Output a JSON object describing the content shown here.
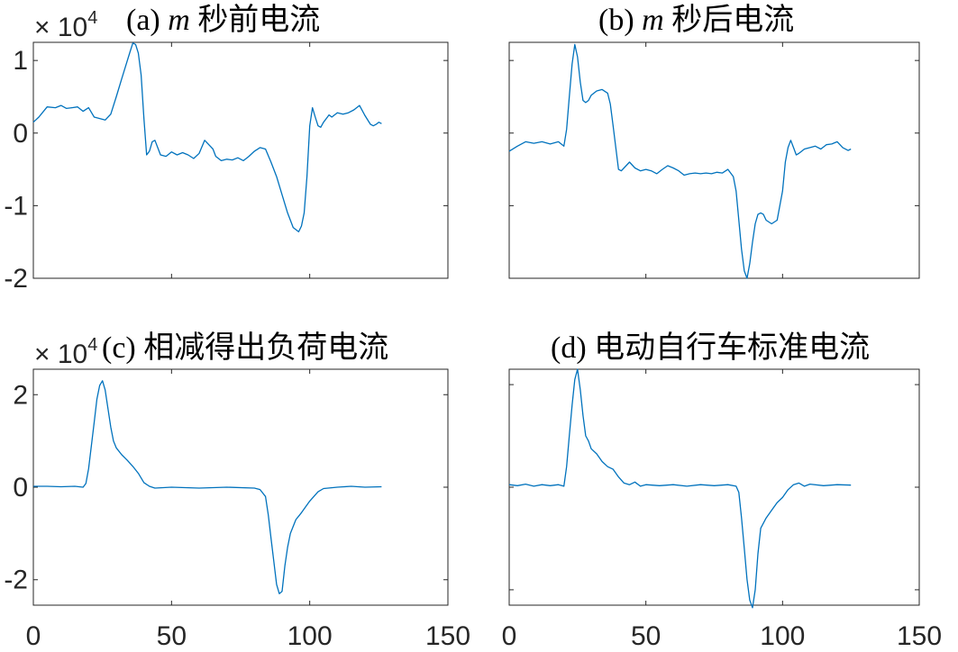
{
  "chart_data": [
    {
      "type": "line",
      "title_prefix": "(a)",
      "title_var": "m",
      "title_text": "秒前电流",
      "y_exponent_label": "× 10",
      "y_exponent_power": "4",
      "xlim": [
        0,
        150
      ],
      "ylim": [
        -2,
        1.25
      ],
      "y_ticks": [
        1,
        0,
        -1,
        -2
      ],
      "y_tick_labels": [
        "1",
        "0",
        "-1",
        "-2"
      ],
      "x_ticks": [
        0,
        50,
        100,
        150
      ],
      "x_tick_labels": [],
      "grid": false,
      "series": [
        {
          "color": "#0072BD",
          "x": [
            0,
            2,
            5,
            8,
            10,
            12,
            14,
            16,
            18,
            20,
            22,
            24,
            26,
            28,
            30,
            32,
            34,
            35,
            36,
            37,
            38,
            39,
            40,
            41,
            42,
            43,
            44,
            45,
            46,
            48,
            50,
            52,
            54,
            56,
            58,
            60,
            62,
            64,
            65,
            66,
            68,
            70,
            72,
            74,
            76,
            78,
            80,
            82,
            84,
            86,
            88,
            90,
            92,
            94,
            96,
            97,
            98,
            99,
            100,
            101,
            102,
            103,
            104,
            105,
            106,
            107,
            108,
            110,
            112,
            114,
            116,
            118,
            120,
            122,
            123,
            124,
            125,
            126
          ],
          "y": [
            0.15,
            0.22,
            0.36,
            0.35,
            0.38,
            0.34,
            0.35,
            0.36,
            0.3,
            0.35,
            0.22,
            0.2,
            0.18,
            0.26,
            0.5,
            0.75,
            1.0,
            1.12,
            1.24,
            1.22,
            1.1,
            0.8,
            0.2,
            -0.3,
            -0.25,
            -0.12,
            -0.1,
            -0.2,
            -0.3,
            -0.32,
            -0.26,
            -0.3,
            -0.27,
            -0.3,
            -0.35,
            -0.28,
            -0.1,
            -0.18,
            -0.22,
            -0.32,
            -0.38,
            -0.36,
            -0.37,
            -0.34,
            -0.38,
            -0.32,
            -0.25,
            -0.2,
            -0.22,
            -0.4,
            -0.6,
            -0.85,
            -1.1,
            -1.3,
            -1.36,
            -1.28,
            -1.1,
            -0.6,
            0.1,
            0.35,
            0.22,
            0.1,
            0.08,
            0.15,
            0.2,
            0.25,
            0.22,
            0.28,
            0.26,
            0.28,
            0.32,
            0.38,
            0.24,
            0.12,
            0.1,
            0.12,
            0.15,
            0.13
          ]
        }
      ]
    },
    {
      "type": "line",
      "title_prefix": "(b)",
      "title_var": "m",
      "title_text": "秒后电流",
      "y_exponent_label": "",
      "y_exponent_power": "",
      "xlim": [
        0,
        150
      ],
      "ylim": [
        -2,
        1.25
      ],
      "y_ticks": [
        1,
        0,
        -1,
        -2
      ],
      "y_tick_labels": [],
      "x_ticks": [
        0,
        50,
        100,
        150
      ],
      "x_tick_labels": [],
      "grid": false,
      "series": [
        {
          "color": "#0072BD",
          "x": [
            0,
            3,
            6,
            9,
            12,
            15,
            18,
            20,
            21,
            22,
            23,
            24,
            25,
            26,
            27,
            28,
            29,
            30,
            32,
            34,
            36,
            37,
            38,
            39,
            40,
            41,
            42,
            44,
            46,
            48,
            50,
            52,
            54,
            56,
            58,
            60,
            62,
            64,
            66,
            68,
            70,
            72,
            74,
            76,
            78,
            80,
            82,
            83,
            84,
            85,
            86,
            87,
            88,
            89,
            90,
            91,
            92,
            93,
            94,
            96,
            98,
            100,
            101,
            102,
            103,
            104,
            105,
            106,
            108,
            110,
            112,
            114,
            116,
            118,
            120,
            122,
            124,
            125
          ],
          "y": [
            -0.25,
            -0.18,
            -0.12,
            -0.14,
            -0.12,
            -0.15,
            -0.12,
            -0.18,
            0.05,
            0.5,
            0.95,
            1.22,
            1.05,
            0.7,
            0.45,
            0.42,
            0.45,
            0.52,
            0.58,
            0.6,
            0.55,
            0.4,
            0.1,
            -0.2,
            -0.5,
            -0.52,
            -0.48,
            -0.4,
            -0.48,
            -0.52,
            -0.5,
            -0.52,
            -0.56,
            -0.5,
            -0.45,
            -0.48,
            -0.52,
            -0.58,
            -0.56,
            -0.55,
            -0.56,
            -0.55,
            -0.56,
            -0.54,
            -0.55,
            -0.5,
            -0.6,
            -0.8,
            -1.2,
            -1.6,
            -1.9,
            -2.0,
            -1.8,
            -1.5,
            -1.25,
            -1.12,
            -1.1,
            -1.12,
            -1.2,
            -1.25,
            -1.2,
            -0.8,
            -0.4,
            -0.2,
            -0.1,
            -0.2,
            -0.3,
            -0.28,
            -0.22,
            -0.2,
            -0.18,
            -0.22,
            -0.16,
            -0.15,
            -0.12,
            -0.2,
            -0.24,
            -0.22
          ]
        }
      ]
    },
    {
      "type": "line",
      "title_prefix": "(c)",
      "title_var": "",
      "title_text": "相减得出负荷电流",
      "y_exponent_label": "× 10",
      "y_exponent_power": "4",
      "xlim": [
        0,
        150
      ],
      "ylim": [
        -2.55,
        2.55
      ],
      "y_ticks": [
        2,
        0,
        -2
      ],
      "y_tick_labels": [
        "2",
        "0",
        "-2"
      ],
      "x_ticks": [
        0,
        50,
        100,
        150
      ],
      "x_tick_labels": [
        "0",
        "50",
        "100",
        "150"
      ],
      "grid": false,
      "series": [
        {
          "color": "#0072BD",
          "x": [
            0,
            5,
            10,
            15,
            18,
            19,
            20,
            21,
            22,
            23,
            24,
            25,
            26,
            27,
            28,
            29,
            30,
            32,
            34,
            36,
            38,
            40,
            42,
            44,
            50,
            60,
            70,
            80,
            82,
            84,
            85,
            86,
            87,
            88,
            89,
            90,
            91,
            92,
            93,
            95,
            97,
            100,
            103,
            105,
            110,
            115,
            120,
            126
          ],
          "y": [
            0.02,
            0.02,
            0.01,
            0.02,
            0.0,
            0.08,
            0.4,
            0.9,
            1.4,
            1.9,
            2.2,
            2.3,
            2.1,
            1.7,
            1.3,
            1.0,
            0.85,
            0.7,
            0.58,
            0.45,
            0.3,
            0.1,
            0.02,
            -0.02,
            0.0,
            -0.02,
            0.0,
            -0.02,
            -0.05,
            -0.2,
            -0.6,
            -1.1,
            -1.6,
            -2.1,
            -2.3,
            -2.25,
            -1.7,
            -1.3,
            -1.0,
            -0.7,
            -0.55,
            -0.3,
            -0.1,
            -0.03,
            0.0,
            0.02,
            0.0,
            0.01
          ]
        }
      ]
    },
    {
      "type": "line",
      "title_prefix": "(d)",
      "title_var": "",
      "title_text": "电动自行车标准电流",
      "y_exponent_label": "",
      "y_exponent_power": "",
      "xlim": [
        0,
        150
      ],
      "ylim": [
        -2.3,
        2.3
      ],
      "y_ticks": [
        2,
        0,
        -2
      ],
      "y_tick_labels": [],
      "x_ticks": [
        0,
        50,
        100,
        150
      ],
      "x_tick_labels": [
        "0",
        "50",
        "100",
        "150"
      ],
      "grid": false,
      "series": [
        {
          "color": "#0072BD",
          "x": [
            0,
            3,
            6,
            9,
            12,
            15,
            18,
            20,
            21,
            22,
            23,
            24,
            25,
            26,
            27,
            28,
            29,
            30,
            32,
            34,
            36,
            38,
            40,
            42,
            44,
            46,
            48,
            50,
            55,
            60,
            65,
            70,
            75,
            80,
            83,
            84,
            85,
            86,
            87,
            88,
            89,
            90,
            91,
            92,
            94,
            96,
            98,
            100,
            102,
            104,
            106,
            108,
            110,
            115,
            120,
            125
          ],
          "y": [
            0.05,
            0.03,
            0.06,
            0.02,
            0.05,
            0.03,
            0.05,
            0.02,
            0.4,
            1.0,
            1.6,
            2.1,
            2.3,
            1.9,
            1.4,
            1.0,
            0.9,
            0.75,
            0.65,
            0.5,
            0.4,
            0.35,
            0.2,
            0.08,
            0.05,
            0.1,
            0.02,
            0.05,
            0.03,
            0.05,
            0.02,
            0.05,
            0.03,
            0.05,
            0.02,
            -0.1,
            -0.6,
            -1.2,
            -1.8,
            -2.2,
            -2.35,
            -2.0,
            -1.3,
            -0.8,
            -0.6,
            -0.45,
            -0.3,
            -0.2,
            -0.05,
            0.05,
            0.08,
            0.02,
            0.06,
            0.03,
            0.05,
            0.04
          ]
        }
      ]
    }
  ]
}
